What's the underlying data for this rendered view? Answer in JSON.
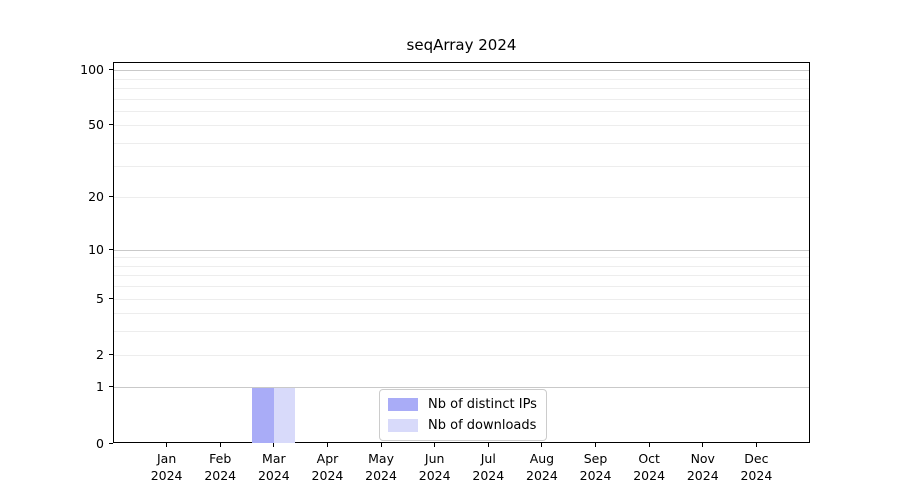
{
  "chart_data": {
    "type": "bar",
    "title": "seqArray 2024",
    "categories": [
      "Jan 2024",
      "Feb 2024",
      "Mar 2024",
      "Apr 2024",
      "May 2024",
      "Jun 2024",
      "Jul 2024",
      "Aug 2024",
      "Sep 2024",
      "Oct 2024",
      "Nov 2024",
      "Dec 2024"
    ],
    "series": [
      {
        "name": "Nb of distinct IPs",
        "color": "#a9acf7",
        "values": [
          0,
          0,
          1,
          0,
          0,
          0,
          0,
          0,
          0,
          0,
          0,
          0
        ]
      },
      {
        "name": "Nb of downloads",
        "color": "#d8dafa",
        "values": [
          0,
          0,
          1,
          0,
          0,
          0,
          0,
          0,
          0,
          0,
          0,
          0
        ]
      }
    ],
    "yticks": [
      0,
      1,
      2,
      5,
      10,
      20,
      50,
      100
    ],
    "major_gridlines": [
      1,
      10,
      100
    ],
    "minor_gridlines": [
      2,
      3,
      4,
      5,
      6,
      7,
      8,
      9,
      20,
      30,
      40,
      50,
      60,
      70,
      80,
      90
    ],
    "scale": "log1p",
    "ylim": [
      0,
      110
    ],
    "grid": "horizontal",
    "legend_position": "inside lower-center"
  },
  "colors": {
    "background": "#ffffff",
    "axis": "#000000",
    "major_grid": "#c9c9c9",
    "minor_grid": "#ededed",
    "legend_border": "#cccccc",
    "text": "#000000"
  }
}
